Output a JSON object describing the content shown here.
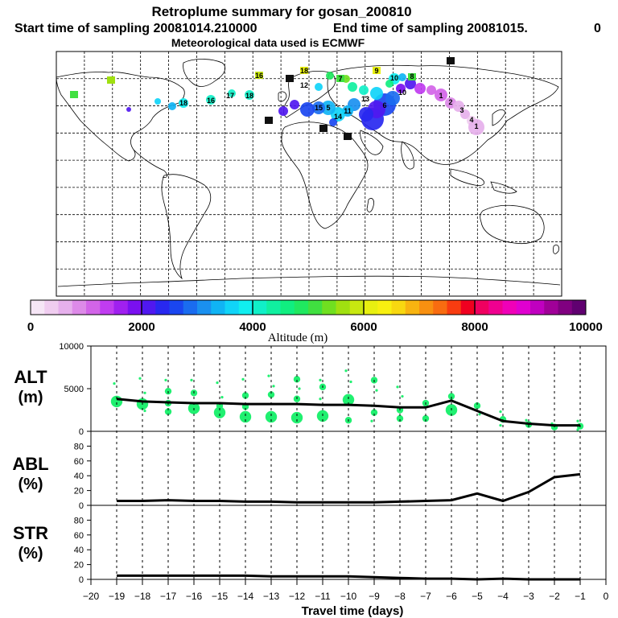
{
  "header": {
    "title": "Retroplume summary for gosan_200810",
    "start_label": "Start time of sampling 20081014.210000",
    "end_label": "End time of sampling 20081015.",
    "end_suffix": "0",
    "met_label": "Meteorological data used is ECMWF"
  },
  "colorbar": {
    "ticks": [
      "0",
      "2000",
      "4000",
      "6000",
      "8000",
      "10000"
    ],
    "label": "Altitude (m)",
    "colors": [
      "#f6e6f6",
      "#f0cdf0",
      "#e6b0ec",
      "#dd8ae8",
      "#d264e8",
      "#c03cf0",
      "#a020f0",
      "#7a10f0",
      "#5018f0",
      "#2828f0",
      "#1a46f0",
      "#1a6cf0",
      "#1a90f0",
      "#10b4f4",
      "#10d4f8",
      "#10eef0",
      "#10f0c8",
      "#10f0a0",
      "#10ee80",
      "#20e860",
      "#40e040",
      "#70e020",
      "#a0e010",
      "#c8e810",
      "#e8f010",
      "#f8f010",
      "#f8d810",
      "#f8b410",
      "#f89010",
      "#f86c10",
      "#f83c10",
      "#f00020",
      "#f00060",
      "#f00090",
      "#f000b8",
      "#e000d0",
      "#c000c0",
      "#a00098",
      "#800080",
      "#600070"
    ]
  },
  "map_labels": [
    "18",
    "9",
    "16",
    "7",
    "12",
    "10",
    "18",
    "8",
    "18",
    "10",
    "17",
    "16",
    "14",
    "13",
    "4",
    "3",
    "15",
    "1",
    "2",
    "5",
    "11",
    "6",
    "1"
  ],
  "chart_data": [
    {
      "type": "line",
      "name": "ALT",
      "ylabel": "ALT",
      "yunit": "(m)",
      "xlim": [
        -20,
        0
      ],
      "ylim": [
        0,
        10000
      ],
      "yticks": [
        "0",
        "5000",
        "10000"
      ],
      "x": [
        -19,
        -18,
        -17,
        -16,
        -15,
        -14,
        -13,
        -12,
        -11,
        -10,
        -9,
        -8,
        -7,
        -6,
        -5,
        -4,
        -3,
        -2,
        -1
      ],
      "values": [
        3800,
        3500,
        3400,
        3300,
        3300,
        3200,
        3200,
        3200,
        3100,
        3100,
        3000,
        2800,
        2800,
        3600,
        2400,
        1200,
        900,
        700,
        700
      ],
      "clusters": [
        {
          "x": -19,
          "pts": [
            [
              5600,
              1
            ],
            [
              3500,
              3
            ]
          ]
        },
        {
          "x": -18,
          "pts": [
            [
              6200,
              1
            ],
            [
              4500,
              1
            ],
            [
              3200,
              3
            ],
            [
              2400,
              1
            ]
          ]
        },
        {
          "x": -17,
          "pts": [
            [
              6000,
              1
            ],
            [
              4700,
              2
            ],
            [
              3300,
              2
            ],
            [
              2300,
              2
            ]
          ]
        },
        {
          "x": -16,
          "pts": [
            [
              6000,
              1
            ],
            [
              4500,
              2
            ],
            [
              2700,
              3
            ]
          ]
        },
        {
          "x": -15,
          "pts": [
            [
              5700,
              1
            ],
            [
              4000,
              1
            ],
            [
              3000,
              2
            ],
            [
              2200,
              3
            ]
          ]
        },
        {
          "x": -14,
          "pts": [
            [
              6100,
              1
            ],
            [
              4200,
              2
            ],
            [
              2900,
              2
            ],
            [
              1700,
              3
            ]
          ]
        },
        {
          "x": -13,
          "pts": [
            [
              6500,
              1
            ],
            [
              5300,
              1
            ],
            [
              4300,
              2
            ],
            [
              1700,
              3
            ]
          ]
        },
        {
          "x": -12,
          "pts": [
            [
              6100,
              2
            ],
            [
              5000,
              1
            ],
            [
              3800,
              2
            ],
            [
              1600,
              3
            ]
          ]
        },
        {
          "x": -11,
          "pts": [
            [
              6000,
              1
            ],
            [
              5200,
              2
            ],
            [
              3800,
              1
            ],
            [
              1800,
              3
            ]
          ]
        },
        {
          "x": -10,
          "pts": [
            [
              7100,
              1
            ],
            [
              5800,
              1
            ],
            [
              3700,
              3
            ],
            [
              1300,
              2
            ]
          ]
        },
        {
          "x": -9,
          "pts": [
            [
              6000,
              2
            ],
            [
              4800,
              1
            ],
            [
              3000,
              1
            ],
            [
              2200,
              2
            ],
            [
              1200,
              1
            ]
          ]
        },
        {
          "x": -8,
          "pts": [
            [
              5200,
              1
            ],
            [
              4100,
              1
            ],
            [
              2500,
              2
            ],
            [
              1500,
              2
            ]
          ]
        },
        {
          "x": -7,
          "pts": [
            [
              3300,
              2
            ],
            [
              1500,
              2
            ]
          ]
        },
        {
          "x": -6,
          "pts": [
            [
              4100,
              2
            ],
            [
              2500,
              3
            ]
          ]
        },
        {
          "x": -5,
          "pts": [
            [
              3000,
              2
            ],
            [
              2000,
              1
            ]
          ]
        },
        {
          "x": -4,
          "pts": [
            [
              2300,
              1
            ],
            [
              1400,
              2
            ],
            [
              700,
              1
            ]
          ]
        },
        {
          "x": -3,
          "pts": [
            [
              1300,
              1
            ],
            [
              800,
              2
            ]
          ]
        },
        {
          "x": -2,
          "pts": [
            [
              900,
              1
            ],
            [
              500,
              2
            ]
          ]
        },
        {
          "x": -1,
          "pts": [
            [
              1200,
              1
            ],
            [
              600,
              2
            ],
            [
              200,
              1
            ]
          ]
        }
      ]
    },
    {
      "type": "line",
      "name": "ABL",
      "ylabel": "ABL",
      "yunit": "(%)",
      "xlim": [
        -20,
        0
      ],
      "ylim": [
        0,
        100
      ],
      "yticks": [
        "0",
        "20",
        "40",
        "60",
        "80"
      ],
      "x": [
        -19,
        -18,
        -17,
        -16,
        -15,
        -14,
        -13,
        -12,
        -11,
        -10,
        -9,
        -8,
        -7,
        -6,
        -5,
        -4,
        -3,
        -2,
        -1
      ],
      "values": [
        6,
        6,
        7,
        6,
        6,
        5,
        5,
        4,
        4,
        4,
        4,
        5,
        6,
        7,
        16,
        6,
        18,
        38,
        42
      ]
    },
    {
      "type": "line",
      "name": "STR",
      "ylabel": "STR",
      "yunit": "(%)",
      "xlim": [
        -20,
        0
      ],
      "ylim": [
        0,
        100
      ],
      "yticks": [
        "0",
        "20",
        "40",
        "60",
        "80"
      ],
      "x": [
        -19,
        -18,
        -17,
        -16,
        -15,
        -14,
        -13,
        -12,
        -11,
        -10,
        -9,
        -8,
        -7,
        -6,
        -5,
        -4,
        -3,
        -2,
        -1
      ],
      "values": [
        5,
        5,
        5,
        5,
        5,
        5,
        4,
        4,
        4,
        4,
        3,
        2,
        1,
        1,
        0,
        1,
        0,
        0,
        0
      ]
    }
  ],
  "xaxis": {
    "ticks": [
      "−20",
      "−19",
      "−18",
      "−17",
      "−16",
      "−15",
      "−14",
      "−13",
      "−12",
      "−11",
      "−10",
      "−9",
      "−8",
      "−7",
      "−6",
      "−5",
      "−4",
      "−3",
      "−2",
      "−1",
      "0"
    ],
    "label": "Travel time (days)"
  }
}
